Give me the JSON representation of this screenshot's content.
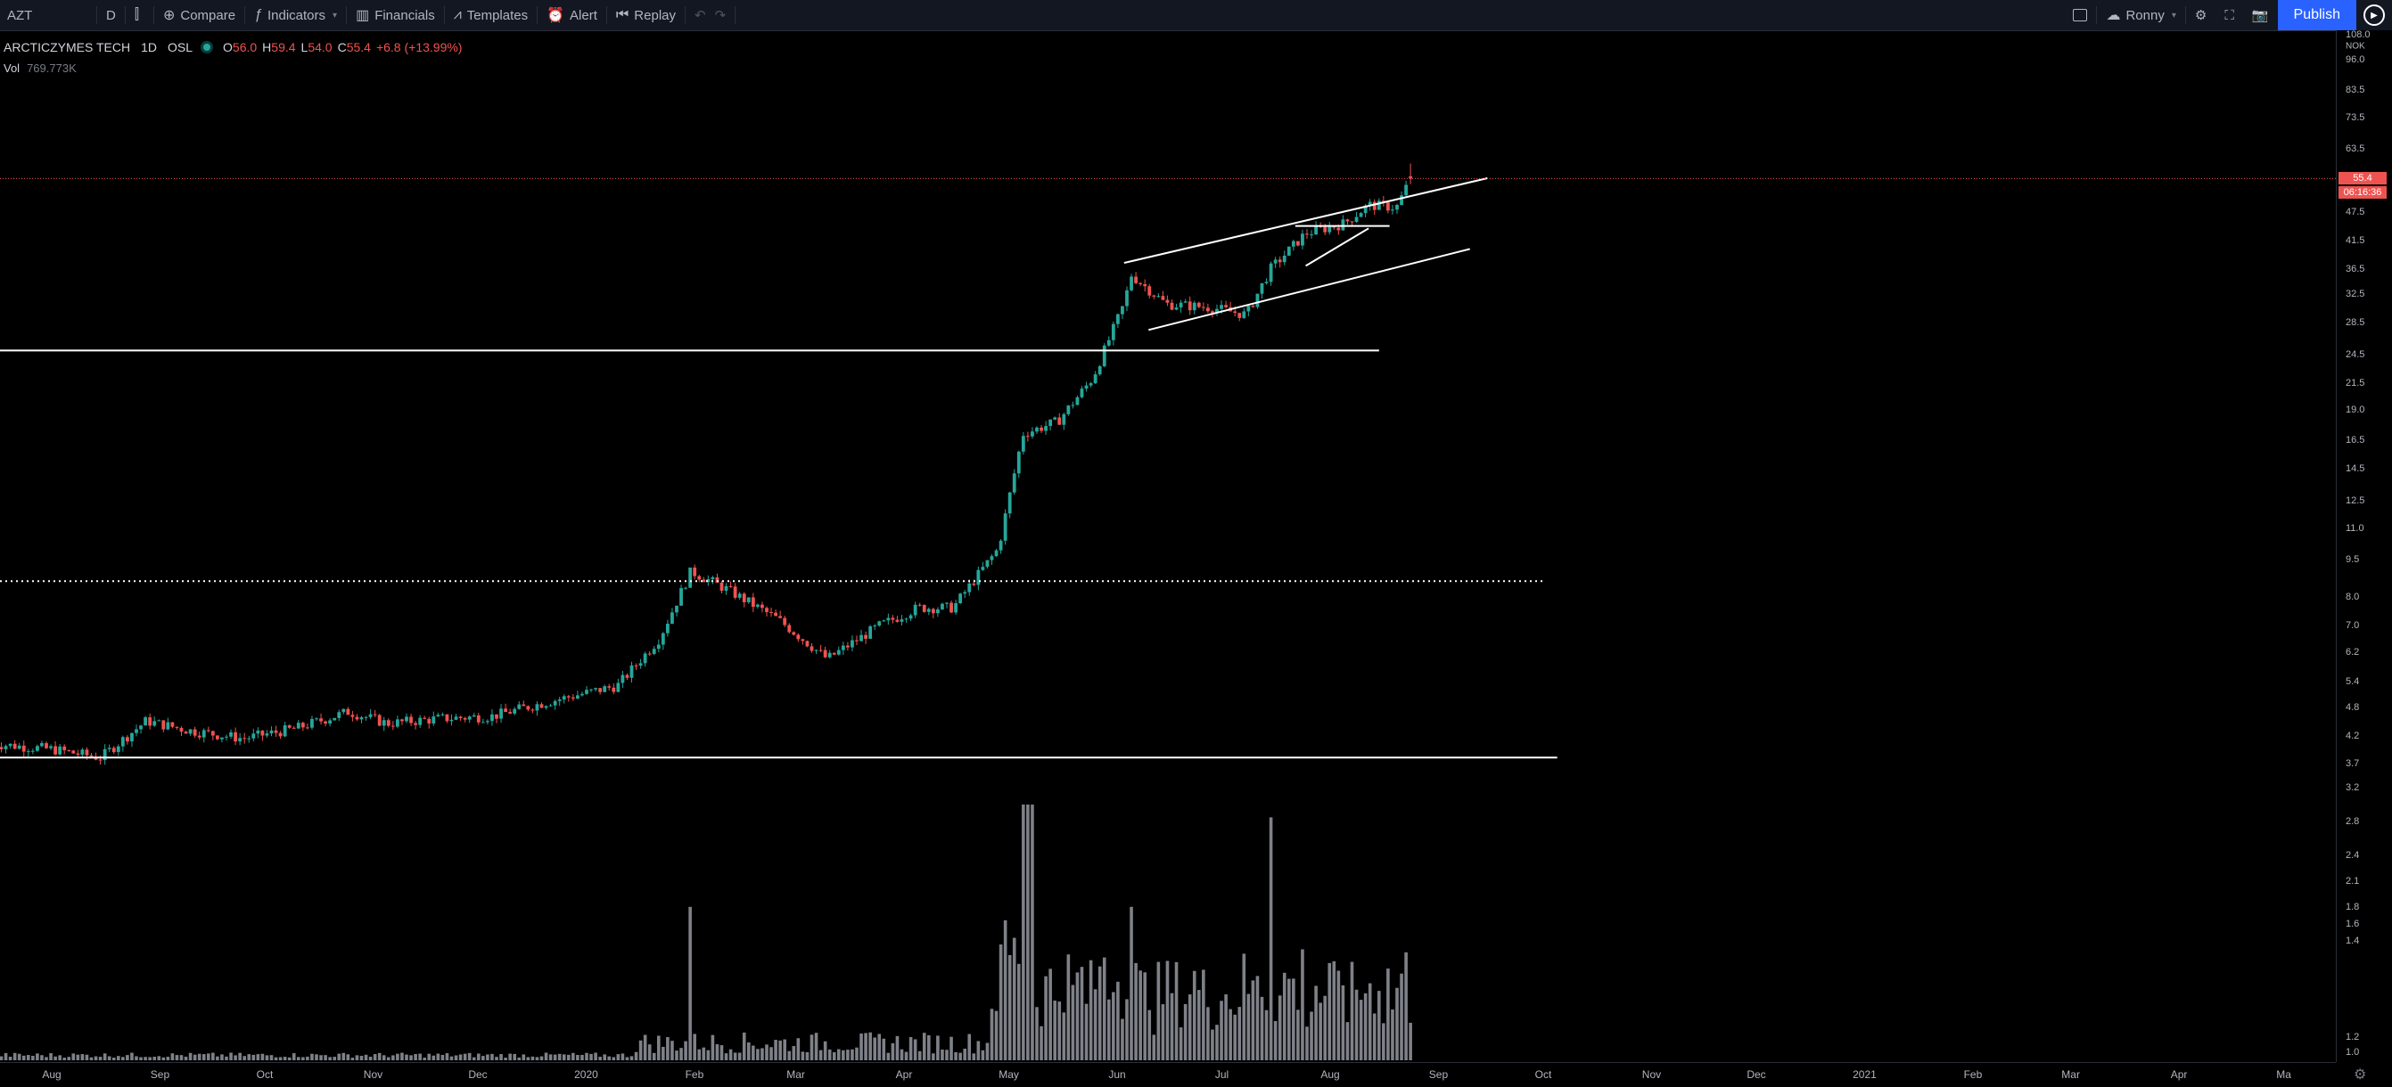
{
  "toolbar": {
    "symbol": "AZT",
    "interval": "D",
    "compare_label": "Compare",
    "indicators_label": "Indicators",
    "financials_label": "Financials",
    "templates_label": "Templates",
    "alert_label": "Alert",
    "replay_label": "Replay",
    "layout_name": "Ronny",
    "publish_label": "Publish"
  },
  "legend": {
    "title": "ARCTICZYMES TECH",
    "interval": "1D",
    "exchange": "OSL",
    "o_label": "O",
    "o_value": "56.0",
    "h_label": "H",
    "h_value": "59.4",
    "l_label": "L",
    "l_value": "54.0",
    "c_label": "C",
    "c_value": "55.4",
    "change": "+6.8 (+13.99%)",
    "vol_label": "Vol",
    "vol_value": "769.773K"
  },
  "price_axis": {
    "currency": "NOK",
    "ticks": [
      "108.0",
      "96.0",
      "83.5",
      "73.5",
      "63.5",
      "55.5",
      "47.5",
      "41.5",
      "36.5",
      "32.5",
      "28.5",
      "24.5",
      "21.5",
      "19.0",
      "16.5",
      "14.5",
      "12.5",
      "11.0",
      "9.5",
      "8.0",
      "7.0",
      "6.2",
      "5.4",
      "4.8",
      "4.2",
      "3.7",
      "3.2",
      "2.8",
      "2.4",
      "2.1",
      "1.8",
      "1.6",
      "1.4",
      "1.2",
      "1.0"
    ],
    "last_price": "55.4",
    "countdown": "06:16:36"
  },
  "time_axis": {
    "labels": [
      "Aug",
      "Sep",
      "Oct",
      "Nov",
      "Dec",
      "2020",
      "Feb",
      "Mar",
      "Apr",
      "May",
      "Jun",
      "Jul",
      "Aug",
      "Sep",
      "Oct",
      "Nov",
      "Dec",
      "2021",
      "Feb",
      "Mar",
      "Apr",
      "Ma"
    ]
  },
  "colors": {
    "up": "#26a69a",
    "down": "#ef5350",
    "volume": "#9598a1",
    "background": "#000000",
    "toolbar_bg": "#131722",
    "accent": "#2962ff",
    "drawing": "#ffffff"
  },
  "icons": {
    "compare": "plus-circle-icon",
    "indicators": "fx-icon",
    "financials": "bar-chart-icon",
    "templates": "templates-icon",
    "alert": "alarm-clock-icon",
    "replay": "replay-icon",
    "undo": "undo-icon",
    "redo": "redo-icon",
    "settings": "gear-icon",
    "fullscreen": "fullscreen-icon",
    "snapshot": "camera-icon"
  },
  "chart_data": {
    "type": "candlestick",
    "symbol": "ARCTICZYMES TECH",
    "exchange": "OSL",
    "interval": "1D",
    "y_scale": "log",
    "ylim": [
      0.95,
      110
    ],
    "price_path": [
      [
        "2019-07-15",
        4.05
      ],
      [
        "2019-08-01",
        3.95
      ],
      [
        "2019-08-15",
        3.8
      ],
      [
        "2019-08-28",
        4.5
      ],
      [
        "2019-09-10",
        4.3
      ],
      [
        "2019-09-25",
        4.15
      ],
      [
        "2019-10-10",
        4.35
      ],
      [
        "2019-10-25",
        4.7
      ],
      [
        "2019-11-05",
        4.45
      ],
      [
        "2019-11-20",
        4.55
      ],
      [
        "2019-12-05",
        4.6
      ],
      [
        "2019-12-20",
        4.9
      ],
      [
        "2020-01-10",
        5.3
      ],
      [
        "2020-01-22",
        6.6
      ],
      [
        "2020-01-31",
        9.0
      ],
      [
        "2020-02-10",
        8.3
      ],
      [
        "2020-02-25",
        7.2
      ],
      [
        "2020-03-10",
        6.0
      ],
      [
        "2020-03-25",
        7.0
      ],
      [
        "2020-04-05",
        7.6
      ],
      [
        "2020-04-15",
        7.6
      ],
      [
        "2020-04-23",
        9.0
      ],
      [
        "2020-04-28",
        10.0
      ],
      [
        "2020-05-05",
        17.0
      ],
      [
        "2020-05-15",
        18.0
      ],
      [
        "2020-05-25",
        22.0
      ],
      [
        "2020-06-03",
        31.0
      ],
      [
        "2020-06-05",
        35.5
      ],
      [
        "2020-06-15",
        31.0
      ],
      [
        "2020-06-28",
        30.5
      ],
      [
        "2020-07-08",
        29.5
      ],
      [
        "2020-07-15",
        36.5
      ],
      [
        "2020-07-25",
        43.0
      ],
      [
        "2020-08-05",
        45.0
      ],
      [
        "2020-08-12",
        49.0
      ],
      [
        "2020-08-20",
        48.5
      ],
      [
        "2020-08-24",
        55.4
      ]
    ],
    "last": {
      "open": 56.0,
      "high": 59.4,
      "low": 54.0,
      "close": 55.4
    },
    "volume_spikes": [
      {
        "date": "2020-01-31",
        "value": "1.8"
      },
      {
        "date": "2020-05-05",
        "value": "3.0"
      },
      {
        "date": "2020-05-07",
        "value": "3.0"
      },
      {
        "date": "2020-06-05",
        "value": "1.8"
      },
      {
        "date": "2020-07-15",
        "value": "2.85"
      }
    ],
    "drawings": [
      {
        "kind": "horizontal",
        "price": 3.8,
        "from": "2019-07-15",
        "to": "2020-10-05"
      },
      {
        "kind": "horizontal-dotted",
        "price": 8.6,
        "from": "2019-07-15",
        "to": "2020-10-01"
      },
      {
        "kind": "horizontal",
        "price": 25.0,
        "from": "2019-07-15",
        "to": "2020-08-15"
      },
      {
        "kind": "channel-upper",
        "from": [
          "2020-06-03",
          37.5
        ],
        "to": [
          "2020-09-15",
          55.5
        ]
      },
      {
        "kind": "channel-lower",
        "from": [
          "2020-06-10",
          27.5
        ],
        "to": [
          "2020-09-10",
          40.0
        ]
      },
      {
        "kind": "wedge",
        "upper": [
          [
            "2020-07-22",
            44.5
          ],
          [
            "2020-08-18",
            44.5
          ]
        ],
        "lower": [
          [
            "2020-07-25",
            37.0
          ],
          [
            "2020-08-12",
            44.0
          ]
        ]
      },
      {
        "kind": "price-line",
        "price": 55.4
      }
    ]
  }
}
